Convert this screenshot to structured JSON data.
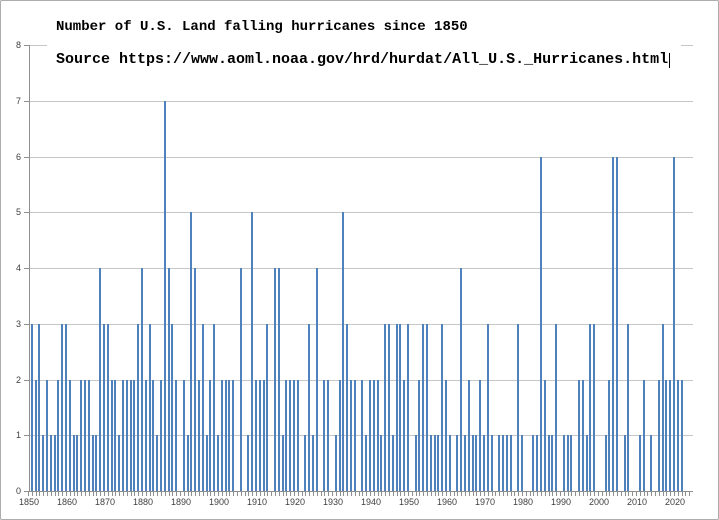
{
  "header": {
    "title": "Number of U.S. Land falling hurricanes since 1850",
    "source_line": "Source https://www.aoml.noaa.gov/hrd/hurdat/All_U.S._Hurricanes.html"
  },
  "colors": {
    "bar": "#4f81bd",
    "gridline": "#c6c6c6",
    "axis": "#8f8f8f",
    "label": "#3f3f3f",
    "window_border": "#adadad",
    "background": "#ffffff"
  },
  "chart_data": {
    "type": "bar",
    "title": "Number of U.S. Land falling hurricanes since 1850",
    "subtitle": "Source https://www.aoml.noaa.gov/hrd/hurdat/All_U.S._Hurricanes.html",
    "xlabel": "",
    "ylabel": "",
    "grid": true,
    "legend": "none",
    "ylim": [
      0,
      8
    ],
    "yticks": [
      0,
      1,
      2,
      3,
      4,
      5,
      6,
      7,
      8
    ],
    "xtick_labels": [
      "1850",
      "1860",
      "1870",
      "1880",
      "1890",
      "1900",
      "1910",
      "1920",
      "1930",
      "1940",
      "1950",
      "1960",
      "1970",
      "1980",
      "1990",
      "2000",
      "2010",
      "2020"
    ],
    "x_start": 1850,
    "x_end": 2022,
    "values": [
      0,
      3,
      2,
      3,
      1,
      2,
      1,
      1,
      2,
      3,
      3,
      2,
      1,
      1,
      2,
      2,
      2,
      1,
      1,
      4,
      3,
      3,
      2,
      2,
      1,
      2,
      2,
      2,
      2,
      3,
      4,
      2,
      3,
      2,
      1,
      2,
      7,
      4,
      3,
      2,
      0,
      2,
      1,
      5,
      4,
      2,
      3,
      1,
      2,
      3,
      1,
      2,
      2,
      2,
      2,
      0,
      4,
      0,
      1,
      5,
      2,
      2,
      2,
      3,
      0,
      4,
      4,
      1,
      2,
      2,
      2,
      2,
      0,
      1,
      3,
      1,
      4,
      0,
      2,
      2,
      0,
      1,
      2,
      5,
      3,
      2,
      2,
      0,
      2,
      1,
      2,
      2,
      2,
      1,
      3,
      3,
      1,
      3,
      3,
      2,
      3,
      0,
      1,
      2,
      3,
      3,
      1,
      1,
      1,
      3,
      2,
      1,
      0,
      1,
      4,
      1,
      2,
      1,
      1,
      2,
      1,
      3,
      1,
      0,
      1,
      1,
      1,
      1,
      0,
      3,
      1,
      0,
      0,
      1,
      1,
      6,
      2,
      1,
      1,
      3,
      0,
      1,
      1,
      1,
      0,
      2,
      2,
      1,
      3,
      3,
      0,
      0,
      1,
      2,
      6,
      6,
      0,
      1,
      3,
      0,
      0,
      1,
      2,
      0,
      1,
      0,
      2,
      3,
      2,
      2,
      6,
      2,
      2
    ]
  }
}
